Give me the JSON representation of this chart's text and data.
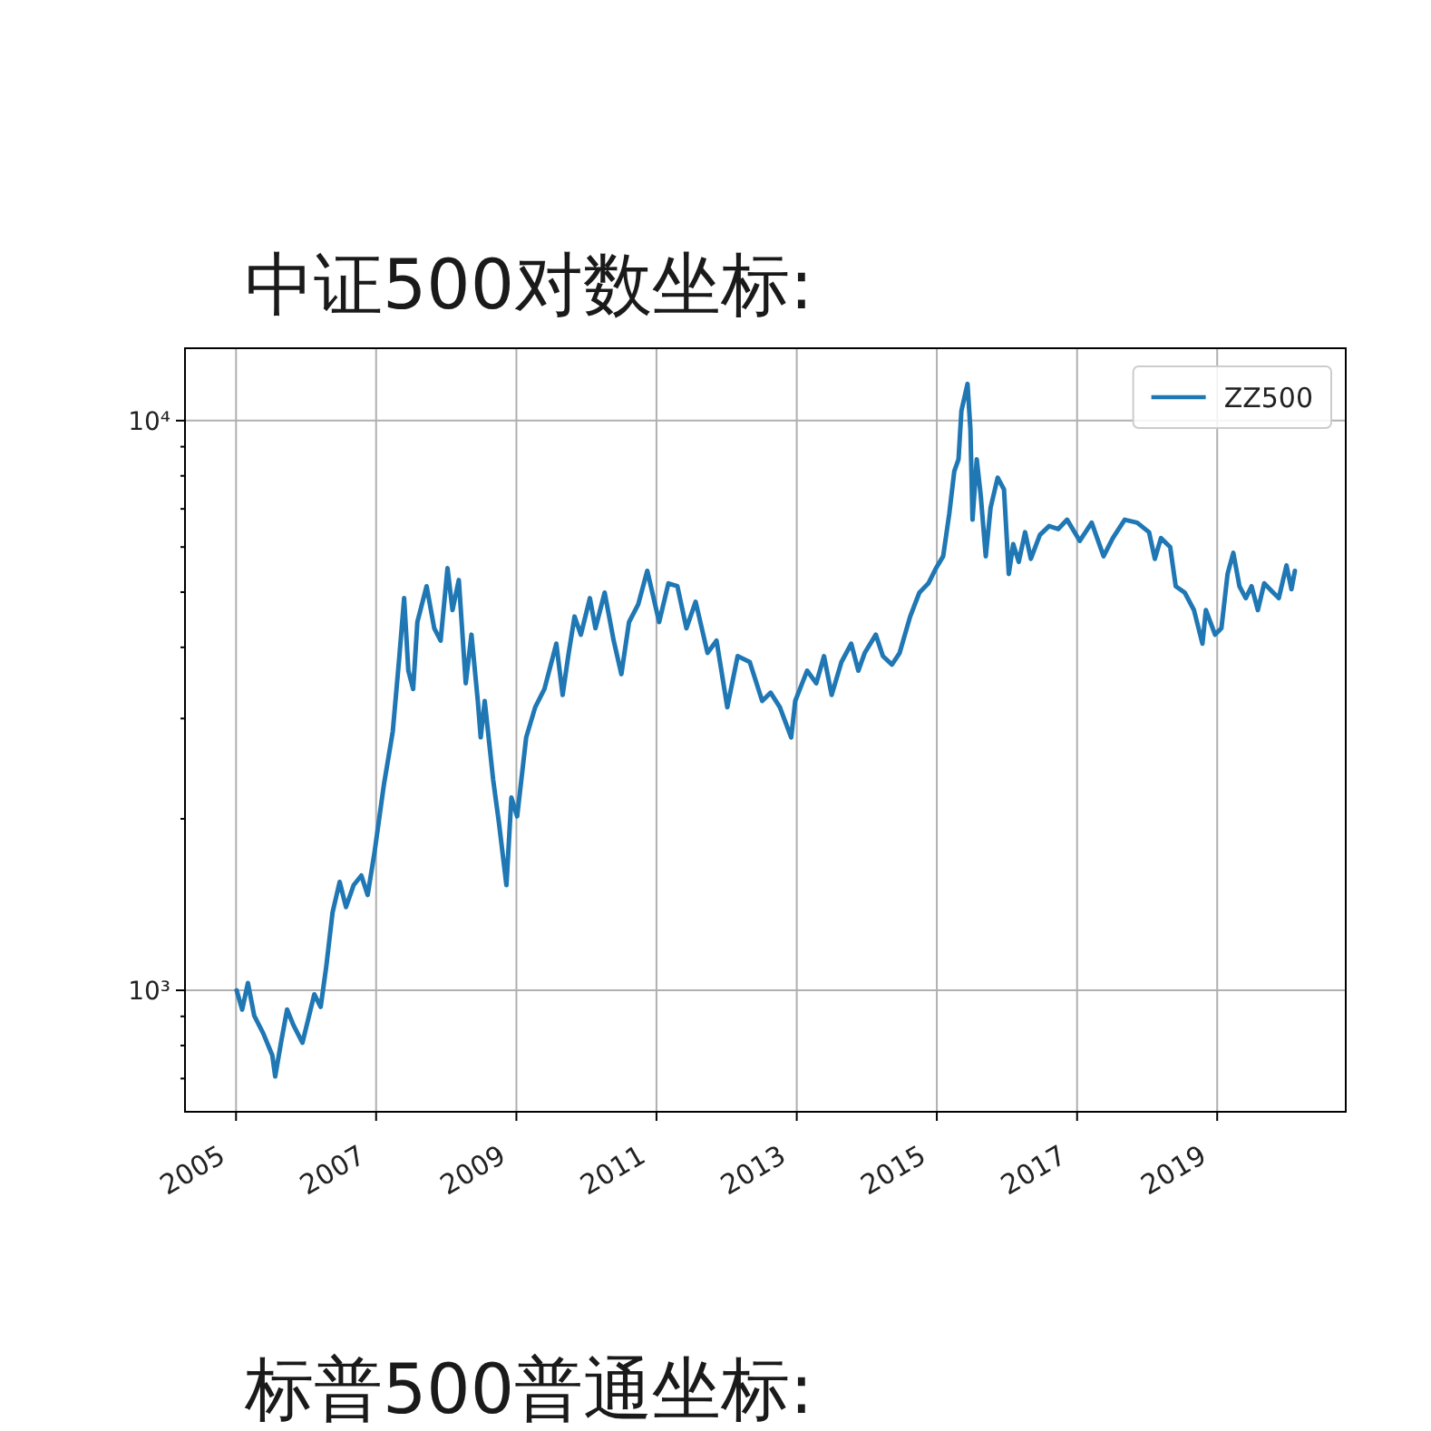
{
  "chart_data": {
    "type": "line",
    "title": "中证500对数坐标:",
    "annotations": [
      "标普500普通坐标:"
    ],
    "x": [
      "2005-01-04",
      "2005-02-02",
      "2005-03-04",
      "2005-04-06",
      "2005-05-23",
      "2005-07-09",
      "2005-07-24",
      "2005-08-26",
      "2005-09-24",
      "2005-10-27",
      "2005-12-13",
      "2006-02-13",
      "2006-03-18",
      "2006-04-16",
      "2006-05-19",
      "2006-06-25",
      "2006-07-28",
      "2006-09-06",
      "2006-10-16",
      "2006-11-18",
      "2006-12-24",
      "2007-02-10",
      "2007-03-29",
      "2007-05-01",
      "2007-05-27",
      "2007-06-18",
      "2007-07-13",
      "2007-08-04",
      "2007-09-21",
      "2007-10-31",
      "2007-12-03",
      "2008-01-08",
      "2008-02-03",
      "2008-03-07",
      "2008-04-12",
      "2008-05-12",
      "2008-06-14",
      "2008-06-29",
      "2008-07-20",
      "2008-09-02",
      "2008-10-02",
      "2008-11-10",
      "2008-12-06",
      "2009-01-05",
      "2009-02-21",
      "2009-04-09",
      "2009-05-27",
      "2009-07-28",
      "2009-08-30",
      "2009-09-28",
      "2009-10-31",
      "2009-12-03",
      "2010-01-19",
      "2010-02-17",
      "2010-04-06",
      "2010-05-23",
      "2010-07-02",
      "2010-08-11",
      "2010-09-28",
      "2010-11-14",
      "2011-01-15",
      "2011-03-04",
      "2011-04-20",
      "2011-06-06",
      "2011-07-24",
      "2011-09-24",
      "2011-11-10",
      "2012-01-05",
      "2012-02-28",
      "2012-05-01",
      "2012-07-05",
      "2012-08-18",
      "2012-10-05",
      "2012-12-03",
      "2012-12-24",
      "2013-02-24",
      "2013-04-13",
      "2013-05-23",
      "2013-07-02",
      "2013-08-22",
      "2013-10-12",
      "2013-11-18",
      "2013-12-21",
      "2014-02-17",
      "2014-03-26",
      "2014-05-12",
      "2014-06-21",
      "2014-08-15",
      "2014-10-02",
      "2014-11-18",
      "2014-12-28",
      "2015-02-03",
      "2015-03-07",
      "2015-04-02",
      "2015-04-24",
      "2015-05-09",
      "2015-06-10",
      "2015-06-25",
      "2015-07-06",
      "2015-07-28",
      "2015-08-18",
      "2015-09-13",
      "2015-10-08",
      "2015-11-14",
      "2015-12-17",
      "2016-01-11",
      "2016-02-03",
      "2016-03-03",
      "2016-04-05",
      "2016-05-05",
      "2016-06-21",
      "2016-08-08",
      "2016-09-24",
      "2016-11-10",
      "2017-01-15",
      "2017-03-18",
      "2017-05-19",
      "2017-07-06",
      "2017-09-06",
      "2017-11-10",
      "2018-01-11",
      "2018-02-10",
      "2018-03-14",
      "2018-05-01",
      "2018-05-30",
      "2018-07-16",
      "2018-09-02",
      "2018-10-16",
      "2018-11-03",
      "2018-12-21",
      "2019-01-23",
      "2019-02-24",
      "2019-03-26",
      "2019-04-27",
      "2019-05-30",
      "2019-06-29",
      "2019-08-01",
      "2019-09-03",
      "2019-10-20",
      "2019-11-18",
      "2019-12-28",
      "2020-01-23",
      "2020-02-10"
    ],
    "series": [
      {
        "name": "ZZ500",
        "color": "#1f77b4",
        "values": [
          1000,
          925,
          1030,
          902,
          840,
          769,
          706,
          819,
          925,
          869,
          809,
          984,
          935,
          1100,
          1370,
          1550,
          1400,
          1530,
          1590,
          1470,
          1750,
          2290,
          2850,
          3820,
          4880,
          3640,
          3380,
          4430,
          5120,
          4320,
          4110,
          5510,
          4650,
          5250,
          3460,
          4210,
          3220,
          2780,
          3220,
          2340,
          1970,
          1530,
          2180,
          2020,
          2780,
          3140,
          3380,
          4060,
          3300,
          3860,
          4530,
          4210,
          4880,
          4320,
          4990,
          4110,
          3590,
          4430,
          4760,
          5450,
          4430,
          5180,
          5120,
          4320,
          4810,
          3910,
          4110,
          3140,
          3860,
          3770,
          3220,
          3330,
          3140,
          2780,
          3220,
          3640,
          3460,
          3860,
          3300,
          3770,
          4060,
          3640,
          3910,
          4210,
          3860,
          3730,
          3910,
          4530,
          4990,
          5180,
          5510,
          5780,
          6870,
          8150,
          8550,
          10400,
          11600,
          9660,
          6700,
          8550,
          7380,
          5780,
          7030,
          7940,
          7570,
          5380,
          6070,
          5650,
          6370,
          5720,
          6300,
          6530,
          6450,
          6700,
          6150,
          6620,
          5780,
          6220,
          6700,
          6620,
          6370,
          5720,
          6220,
          6000,
          5120,
          4990,
          4650,
          4060,
          4650,
          4210,
          4320,
          5380,
          5860,
          5120,
          4880,
          5120,
          4650,
          5180,
          4990,
          4880,
          5570,
          5060,
          5450
        ]
      }
    ],
    "xlim": [
      "2004-04-10",
      "2020-11-01"
    ],
    "xticks": [
      "2005",
      "2007",
      "2009",
      "2011",
      "2013",
      "2015",
      "2017",
      "2019"
    ],
    "ylim": [
      612,
      13400
    ],
    "yticks": [
      {
        "value": 700,
        "label": null
      },
      {
        "value": 800,
        "label": null
      },
      {
        "value": 900,
        "label": null
      },
      {
        "value": 1000,
        "label": "10³"
      },
      {
        "value": 2000,
        "label": null
      },
      {
        "value": 3000,
        "label": null
      },
      {
        "value": 4000,
        "label": null
      },
      {
        "value": 5000,
        "label": null
      },
      {
        "value": 6000,
        "label": null
      },
      {
        "value": 7000,
        "label": null
      },
      {
        "value": 8000,
        "label": null
      },
      {
        "value": 9000,
        "label": null
      },
      {
        "value": 10000,
        "label": "10⁴"
      }
    ],
    "log": true,
    "grid": true,
    "legend": "top right"
  }
}
